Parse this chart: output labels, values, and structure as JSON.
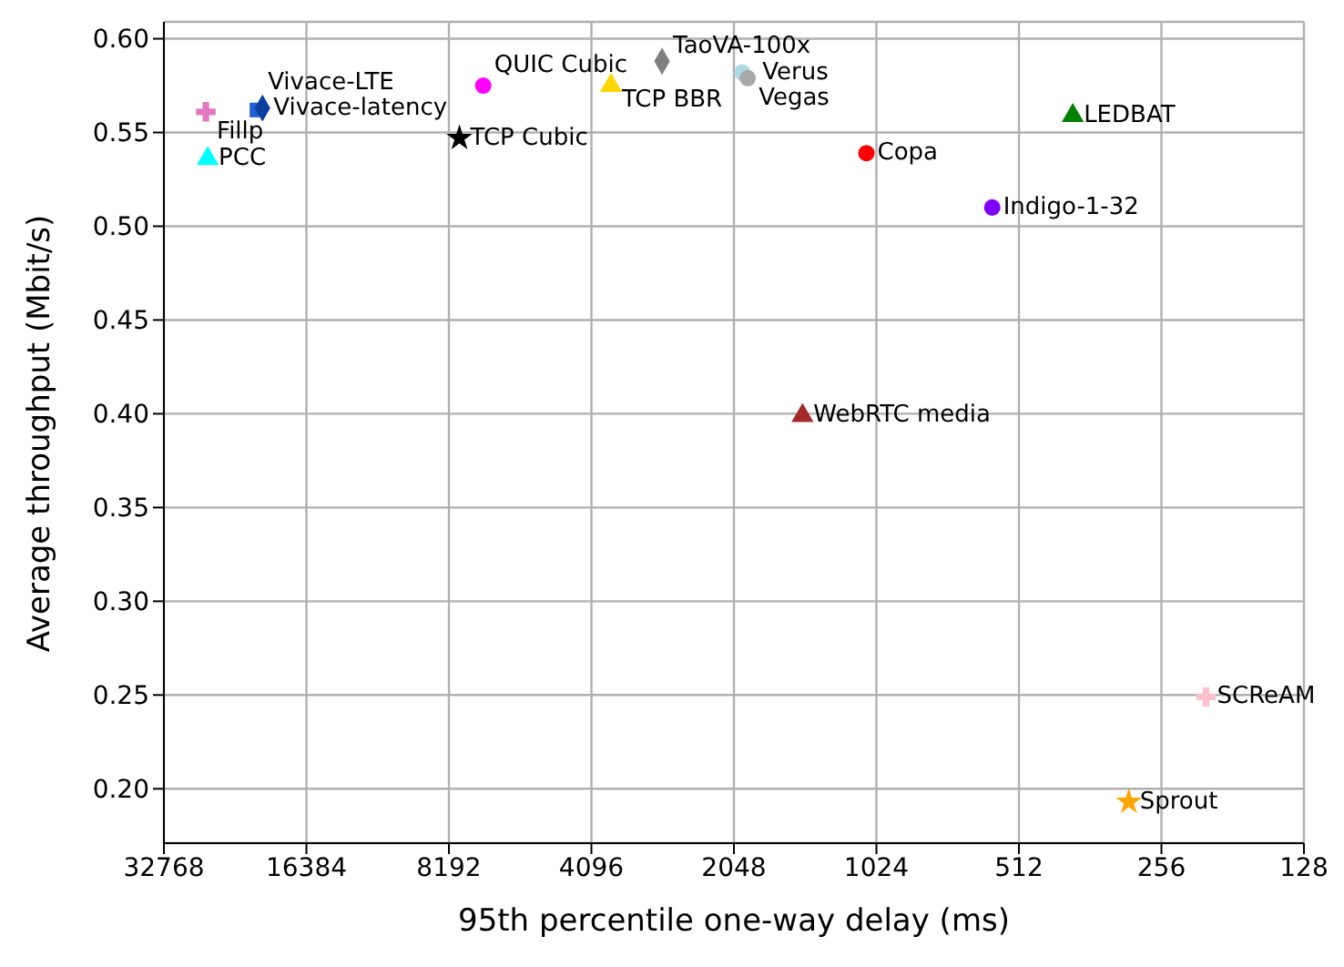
{
  "chart_data": {
    "type": "scatter",
    "xlabel": "95th percentile one-way delay (ms)",
    "ylabel": "Average throughput (Mbit/s)",
    "log": "x",
    "xlim": [
      32768,
      128
    ],
    "xticks": [
      32768,
      16384,
      8192,
      4096,
      2048,
      1024,
      512,
      256,
      128
    ],
    "ylim": [
      0.171,
      0.609
    ],
    "yticks": [
      {
        "value": 0.2,
        "label": "0.20"
      },
      {
        "value": 0.25,
        "label": "0.25"
      },
      {
        "value": 0.3,
        "label": "0.30"
      },
      {
        "value": 0.35,
        "label": "0.35"
      },
      {
        "value": 0.4,
        "label": "0.40"
      },
      {
        "value": 0.45,
        "label": "0.45"
      },
      {
        "value": 0.5,
        "label": "0.50"
      },
      {
        "value": 0.55,
        "label": "0.55"
      },
      {
        "value": 0.6,
        "label": "0.60"
      }
    ],
    "grid": true,
    "legend": false,
    "series": [
      {
        "name": "Fillp",
        "color": "#e377c2",
        "marker": "cross",
        "x": [
          26720
        ],
        "values": [
          0.561
        ]
      },
      {
        "name": "Vivace-LTE",
        "color": "#1f5fd0",
        "marker": "square",
        "x": [
          20840
        ],
        "values": [
          0.562
        ]
      },
      {
        "name": "Vivace-latency",
        "color": "#0b3fa0",
        "marker": "diamond",
        "x": [
          20290
        ],
        "values": [
          0.563
        ]
      },
      {
        "name": "PCC",
        "color": "#00ffff",
        "marker": "triangle",
        "x": [
          26480
        ],
        "values": [
          0.536
        ]
      },
      {
        "name": "QUIC Cubic",
        "color": "#ff00ff",
        "marker": "circle",
        "x": [
          6932
        ],
        "values": [
          0.575
        ]
      },
      {
        "name": "TCP Cubic",
        "color": "#000000",
        "marker": "star",
        "x": [
          7783
        ],
        "values": [
          0.547
        ]
      },
      {
        "name": "TCP BBR",
        "color": "#ffd700",
        "marker": "triangle",
        "x": [
          3724
        ],
        "values": [
          0.575
        ]
      },
      {
        "name": "TaoVA-100x",
        "color": "#808080",
        "marker": "diamond",
        "x": [
          2905
        ],
        "values": [
          0.588
        ]
      },
      {
        "name": "Verus",
        "color": "#add8e6",
        "marker": "circle",
        "x": [
          1966
        ],
        "values": [
          0.582
        ]
      },
      {
        "name": "Vegas",
        "color": "#a9a9a9",
        "marker": "circle",
        "x": [
          1915
        ],
        "values": [
          0.579
        ]
      },
      {
        "name": "Copa",
        "color": "#ff0000",
        "marker": "circle",
        "x": [
          1075
        ],
        "values": [
          0.539
        ]
      },
      {
        "name": "Indigo-1-32",
        "color": "#7f00ff",
        "marker": "circle",
        "x": [
          583
        ],
        "values": [
          0.51
        ]
      },
      {
        "name": "LEDBAT",
        "color": "#008000",
        "marker": "triangle",
        "x": [
          394
        ],
        "values": [
          0.559
        ]
      },
      {
        "name": "WebRTC media",
        "color": "#a52a2a",
        "marker": "triangle",
        "x": [
          1467
        ],
        "values": [
          0.399
        ]
      },
      {
        "name": "SCReAM",
        "color": "#ffc0cb",
        "marker": "cross",
        "x": [
          206
        ],
        "values": [
          0.249
        ]
      },
      {
        "name": "Sprout",
        "color": "#ffa500",
        "marker": "star",
        "x": [
          300
        ],
        "values": [
          0.193
        ]
      }
    ]
  }
}
